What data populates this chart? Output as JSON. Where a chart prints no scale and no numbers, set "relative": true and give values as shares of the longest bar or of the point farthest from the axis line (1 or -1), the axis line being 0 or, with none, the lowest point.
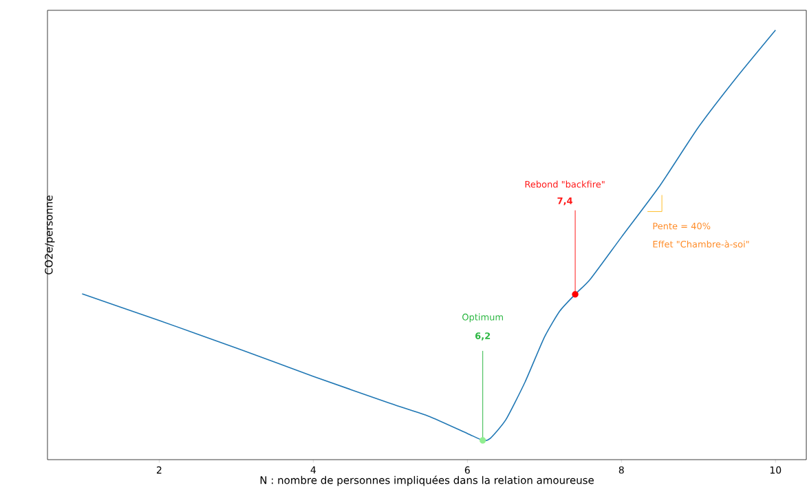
{
  "chart_data": {
    "type": "line",
    "relative": true,
    "xlabel": "N : nombre de personnes impliquées dans la relation amoureuse",
    "ylabel": "CO2e/personne",
    "xlim": [
      0.55,
      10.4
    ],
    "xticks": [
      2,
      4,
      6,
      8,
      10
    ],
    "series": [
      {
        "color": "#1f77b4",
        "x": [
          1,
          2,
          3,
          4,
          5,
          5.5,
          6,
          6.2,
          6.3,
          6.5,
          6.75,
          7,
          7.2,
          7.4,
          7.6,
          8,
          8.5,
          9,
          9.5,
          10
        ],
        "values": [
          0.386,
          0.324,
          0.26,
          0.194,
          0.131,
          0.101,
          0.061,
          0.045,
          0.05,
          0.093,
          0.181,
          0.285,
          0.346,
          0.385,
          0.421,
          0.518,
          0.638,
          0.774,
          0.891,
          1.0
        ]
      },
      {
        "type": "scatter",
        "marker": "circle",
        "color": "#90ee90",
        "x": [
          6.2
        ],
        "values": [
          0.045
        ]
      },
      {
        "type": "scatter",
        "marker": "circle",
        "color": "#ff0000",
        "x": [
          7.4
        ],
        "values": [
          0.385
        ]
      }
    ],
    "annotations": [
      "Optimum",
      {
        "text": "6,2",
        "x": 6.2,
        "y": 0.045
      },
      "Rebond \"backfire\"",
      {
        "text": "7,4",
        "x": 7.4,
        "y": 0.385
      },
      "Pente = 40%",
      "Effet \"Chambre-à-soi\""
    ]
  }
}
